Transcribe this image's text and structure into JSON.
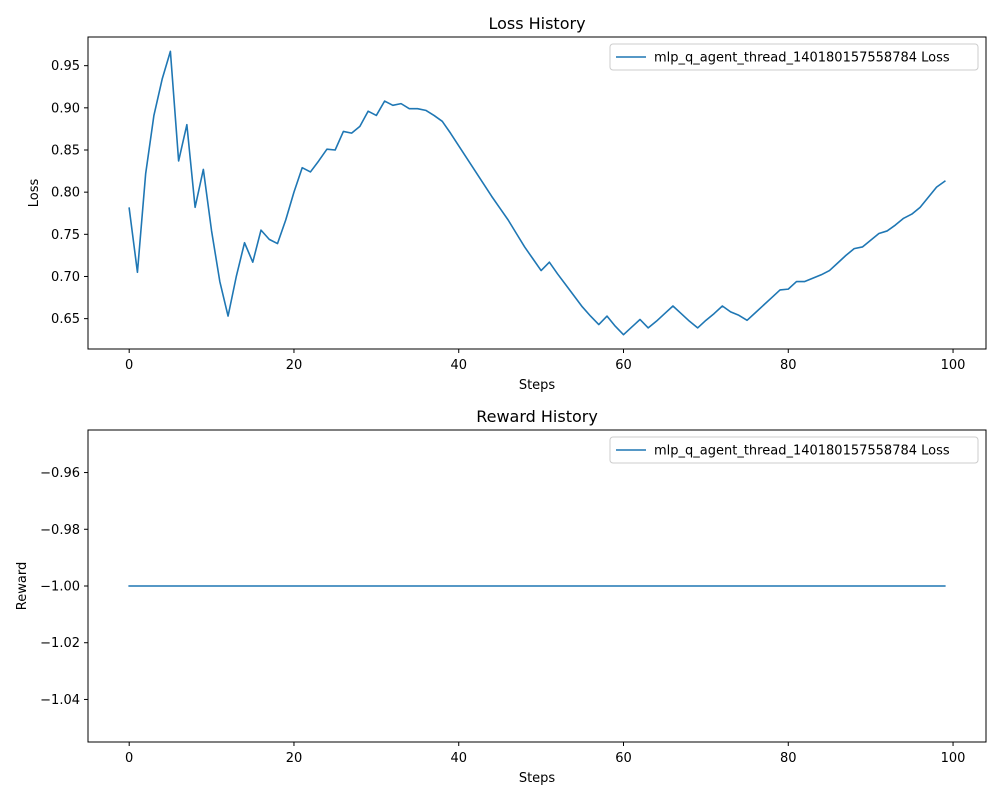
{
  "chart_data": [
    {
      "type": "line",
      "title": "Loss History",
      "xlabel": "Steps",
      "ylabel": "Loss",
      "xlim": [
        -5,
        104
      ],
      "ylim": [
        0.614,
        0.984
      ],
      "xticks": [
        0,
        20,
        40,
        60,
        80,
        100
      ],
      "yticks": [
        0.65,
        0.7,
        0.75,
        0.8,
        0.85,
        0.9,
        0.95
      ],
      "ytick_decimals": 2,
      "legend_position": "upper-right",
      "grid": false,
      "series_color": "#1f77b4",
      "series": [
        {
          "name": "mlp_q_agent_thread_140180157558784 Loss",
          "x": [
            0,
            1,
            2,
            3,
            4,
            5,
            6,
            7,
            8,
            9,
            10,
            11,
            12,
            13,
            14,
            15,
            16,
            17,
            18,
            19,
            20,
            21,
            22,
            23,
            24,
            25,
            26,
            27,
            28,
            29,
            30,
            31,
            32,
            33,
            34,
            35,
            36,
            37,
            38,
            39,
            40,
            41,
            42,
            43,
            44,
            45,
            46,
            47,
            48,
            49,
            50,
            51,
            52,
            53,
            54,
            55,
            56,
            57,
            58,
            59,
            60,
            61,
            62,
            63,
            64,
            65,
            66,
            67,
            68,
            69,
            70,
            71,
            72,
            73,
            74,
            75,
            76,
            77,
            78,
            79,
            80,
            81,
            82,
            83,
            84,
            85,
            86,
            87,
            88,
            89,
            90,
            91,
            92,
            93,
            94,
            95,
            96,
            97,
            98,
            99
          ],
          "y": [
            0.781,
            0.705,
            0.822,
            0.891,
            0.934,
            0.967,
            0.837,
            0.88,
            0.782,
            0.827,
            0.754,
            0.694,
            0.653,
            0.7,
            0.74,
            0.717,
            0.755,
            0.744,
            0.739,
            0.767,
            0.8,
            0.829,
            0.824,
            0.837,
            0.851,
            0.85,
            0.872,
            0.87,
            0.878,
            0.896,
            0.891,
            0.908,
            0.903,
            0.905,
            0.899,
            0.899,
            0.897,
            0.891,
            0.884,
            0.87,
            0.855,
            0.84,
            0.825,
            0.81,
            0.795,
            0.781,
            0.767,
            0.751,
            0.735,
            0.721,
            0.707,
            0.717,
            0.703,
            0.69,
            0.677,
            0.664,
            0.653,
            0.643,
            0.653,
            0.641,
            0.631,
            0.64,
            0.649,
            0.639,
            0.647,
            0.656,
            0.665,
            0.656,
            0.647,
            0.639,
            0.648,
            0.656,
            0.665,
            0.658,
            0.654,
            0.648,
            0.657,
            0.666,
            0.675,
            0.684,
            0.685,
            0.694,
            0.694,
            0.698,
            0.702,
            0.707,
            0.716,
            0.725,
            0.733,
            0.735,
            0.743,
            0.751,
            0.754,
            0.761,
            0.769,
            0.774,
            0.782,
            0.794,
            0.806,
            0.813
          ]
        }
      ]
    },
    {
      "type": "line",
      "title": "Reward History",
      "xlabel": "Steps",
      "ylabel": "Reward",
      "xlim": [
        -5,
        104
      ],
      "ylim": [
        -1.055,
        -0.945
      ],
      "xticks": [
        0,
        20,
        40,
        60,
        80,
        100
      ],
      "yticks": [
        -1.04,
        -1.02,
        -1.0,
        -0.98,
        -0.96
      ],
      "ytick_decimals": 2,
      "legend_position": "upper-right",
      "grid": false,
      "series_color": "#1f77b4",
      "series": [
        {
          "name": "mlp_q_agent_thread_140180157558784 Loss",
          "x": [
            0,
            99
          ],
          "y": [
            -1.0,
            -1.0
          ]
        }
      ]
    }
  ]
}
